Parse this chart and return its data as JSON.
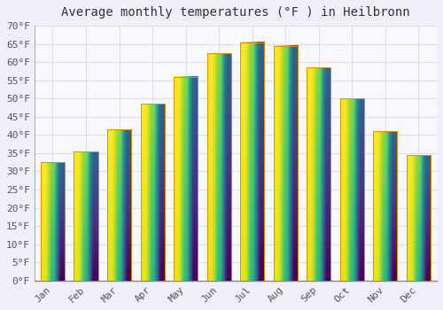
{
  "title": "Average monthly temperatures (°F ) in Heilbronn",
  "months": [
    "Jan",
    "Feb",
    "Mar",
    "Apr",
    "May",
    "Jun",
    "Jul",
    "Aug",
    "Sep",
    "Oct",
    "Nov",
    "Dec"
  ],
  "values": [
    32.5,
    35.5,
    41.5,
    48.5,
    56.0,
    62.5,
    65.5,
    64.5,
    58.5,
    50.0,
    41.0,
    34.5
  ],
  "bar_color_top": "#FFD050",
  "bar_color_bottom": "#F5A800",
  "bar_edge_color": "#E09000",
  "ylim": [
    0,
    70
  ],
  "ytick_step": 5,
  "background_color": "#F0F0F8",
  "plot_bg_color": "#F8F8FF",
  "grid_color": "#DDDDEE",
  "title_fontsize": 10,
  "tick_fontsize": 8,
  "font_family": "monospace"
}
